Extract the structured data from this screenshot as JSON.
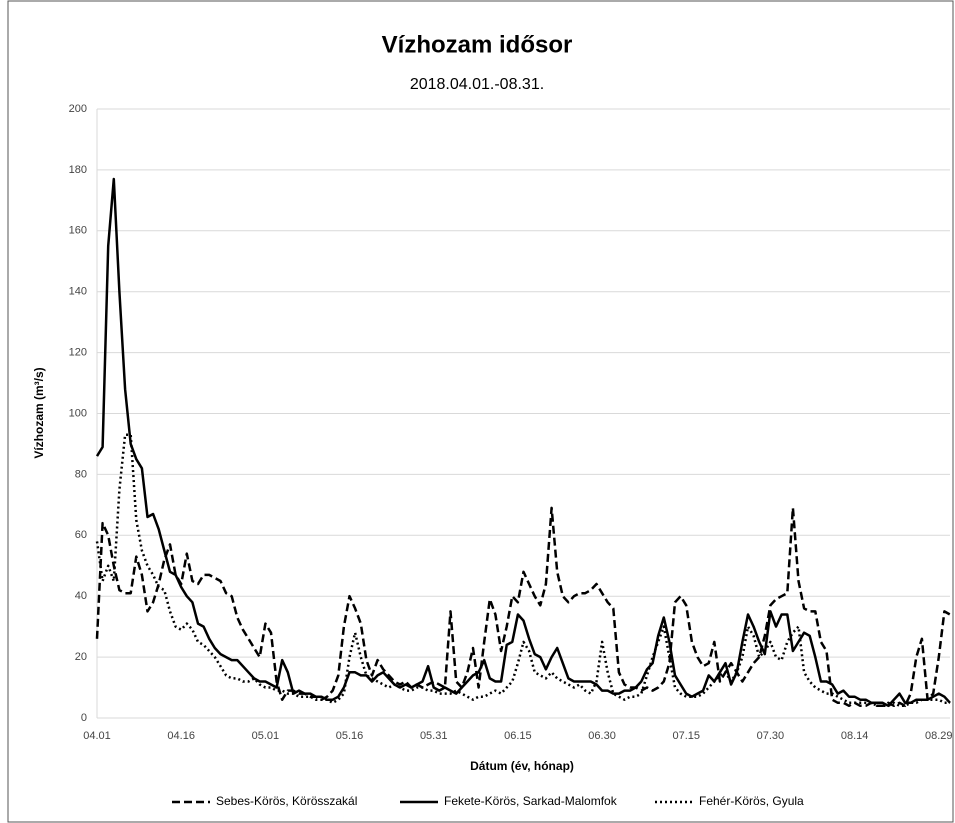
{
  "chart_data": {
    "type": "line",
    "title": "Vízhozam idősor",
    "subtitle": "2018.04.01.-08.31.",
    "y_label": "Vízhozam (m³/s)",
    "x_label": "Dátum (év, hónap)",
    "ylim": [
      0,
      200
    ],
    "yticks": [
      0,
      20,
      40,
      60,
      80,
      100,
      120,
      140,
      160,
      180,
      200
    ],
    "grid": true,
    "legend": "bottom",
    "categories": [
      "04.01",
      null,
      null,
      null,
      null,
      null,
      null,
      null,
      null,
      null,
      null,
      null,
      null,
      null,
      null,
      "04.16",
      null,
      null,
      null,
      null,
      null,
      null,
      null,
      null,
      null,
      null,
      null,
      null,
      null,
      null,
      "05.01",
      null,
      null,
      null,
      null,
      null,
      null,
      null,
      null,
      null,
      null,
      null,
      null,
      null,
      null,
      "05.16",
      null,
      null,
      null,
      null,
      null,
      null,
      null,
      null,
      null,
      null,
      null,
      null,
      null,
      null,
      "05.31",
      null,
      null,
      null,
      null,
      null,
      null,
      null,
      null,
      null,
      null,
      null,
      null,
      null,
      null,
      "06.15",
      null,
      null,
      null,
      null,
      null,
      null,
      null,
      null,
      null,
      null,
      null,
      null,
      null,
      null,
      "06.30",
      null,
      null,
      null,
      null,
      null,
      null,
      null,
      null,
      null,
      null,
      null,
      null,
      null,
      null,
      "07.15",
      null,
      null,
      null,
      null,
      null,
      null,
      null,
      null,
      null,
      null,
      null,
      null,
      null,
      null,
      "07.30",
      null,
      null,
      null,
      null,
      null,
      null,
      null,
      null,
      null,
      null,
      null,
      null,
      null,
      null,
      "08.14",
      null,
      null,
      null,
      null,
      null,
      null,
      null,
      null,
      null,
      null,
      null,
      null,
      null,
      null,
      "08.29",
      null,
      null
    ],
    "series": [
      {
        "name": "Sebes-Körös, Körösszakál",
        "color": "#000000",
        "style": "dashed",
        "values": [
          26,
          64,
          60,
          50,
          42,
          41,
          41,
          53,
          47,
          35,
          38,
          44,
          52,
          57,
          47,
          44,
          54,
          45,
          44,
          47,
          47,
          46,
          45,
          41,
          40,
          33,
          29,
          26,
          23,
          20,
          31,
          28,
          12,
          6,
          9,
          9,
          8,
          8,
          7,
          7,
          6,
          7,
          9,
          14,
          30,
          40,
          36,
          31,
          19,
          14,
          19,
          16,
          14,
          12,
          11,
          12,
          10,
          11,
          10,
          11,
          12,
          11,
          10,
          35,
          12,
          10,
          15,
          23,
          10,
          25,
          39,
          34,
          22,
          30,
          40,
          38,
          48,
          44,
          40,
          37,
          44,
          69,
          48,
          40,
          38,
          40,
          41,
          41,
          42,
          44,
          41,
          38,
          36,
          15,
          11,
          10,
          10,
          9,
          10,
          9,
          10,
          12,
          18,
          38,
          40,
          37,
          25,
          20,
          17,
          18,
          25,
          12,
          15,
          18,
          15,
          12,
          15,
          18,
          20,
          27,
          37,
          39,
          40,
          41,
          69,
          45,
          36,
          35,
          35,
          25,
          22,
          6,
          5,
          5,
          4,
          5,
          4,
          4,
          5,
          4,
          4,
          5,
          4,
          5,
          4,
          8,
          20,
          26,
          6,
          8,
          20,
          35,
          34
        ]
      },
      {
        "name": "Fekete-Körös, Sarkad-Malomfok",
        "color": "#000000",
        "style": "solid",
        "values": [
          86,
          89,
          155,
          177,
          140,
          108,
          90,
          85,
          82,
          66,
          67,
          62,
          55,
          48,
          47,
          43,
          40,
          38,
          31,
          30,
          26,
          23,
          21,
          20,
          19,
          19,
          17,
          15,
          13,
          12,
          12,
          11,
          10,
          19,
          15,
          8,
          9,
          8,
          8,
          7,
          7,
          6,
          6,
          7,
          10,
          15,
          15,
          14,
          14,
          12,
          14,
          15,
          13,
          11,
          10,
          11,
          10,
          11,
          12,
          17,
          10,
          9,
          10,
          9,
          8,
          10,
          12,
          14,
          15,
          19,
          13,
          12,
          12,
          24,
          25,
          34,
          32,
          26,
          21,
          20,
          16,
          20,
          23,
          18,
          13,
          12,
          12,
          12,
          12,
          11,
          9,
          9,
          8,
          8,
          9,
          9,
          10,
          12,
          16,
          18,
          27,
          33,
          25,
          14,
          11,
          8,
          7,
          8,
          9,
          14,
          12,
          15,
          18,
          11,
          15,
          25,
          34,
          30,
          25,
          21,
          35,
          30,
          34,
          34,
          22,
          25,
          28,
          27,
          20,
          12,
          12,
          11,
          8,
          9,
          7,
          7,
          6,
          6,
          5,
          5,
          5,
          4,
          6,
          8,
          5,
          5,
          6,
          6,
          6,
          7,
          8,
          7,
          5
        ]
      },
      {
        "name": "Fehér-Körös, Gyula",
        "color": "#000000",
        "style": "dotted",
        "values": [
          58,
          45,
          50,
          45,
          75,
          93,
          93,
          65,
          55,
          50,
          47,
          43,
          42,
          35,
          30,
          29,
          31,
          29,
          25,
          24,
          22,
          20,
          17,
          14,
          13,
          13,
          12,
          12,
          13,
          11,
          10,
          10,
          9,
          9,
          8,
          8,
          7,
          7,
          7,
          6,
          6,
          6,
          5,
          6,
          8,
          20,
          28,
          20,
          14,
          13,
          12,
          11,
          10,
          11,
          10,
          9,
          9,
          10,
          10,
          9,
          9,
          8,
          8,
          8,
          9,
          8,
          7,
          6,
          7,
          7,
          8,
          9,
          8,
          10,
          12,
          18,
          25,
          22,
          15,
          14,
          13,
          15,
          13,
          12,
          11,
          10,
          11,
          9,
          8,
          12,
          25,
          15,
          8,
          7,
          6,
          7,
          7,
          8,
          14,
          20,
          25,
          30,
          20,
          10,
          8,
          7,
          7,
          7,
          8,
          10,
          12,
          14,
          15,
          12,
          15,
          20,
          30,
          27,
          20,
          22,
          25,
          20,
          19,
          25,
          28,
          30,
          15,
          12,
          10,
          9,
          8,
          8,
          7,
          6,
          5,
          5,
          5,
          5,
          5,
          4,
          4,
          4,
          5,
          4,
          4,
          5,
          5,
          6,
          6,
          6,
          6,
          5,
          5
        ]
      }
    ]
  }
}
